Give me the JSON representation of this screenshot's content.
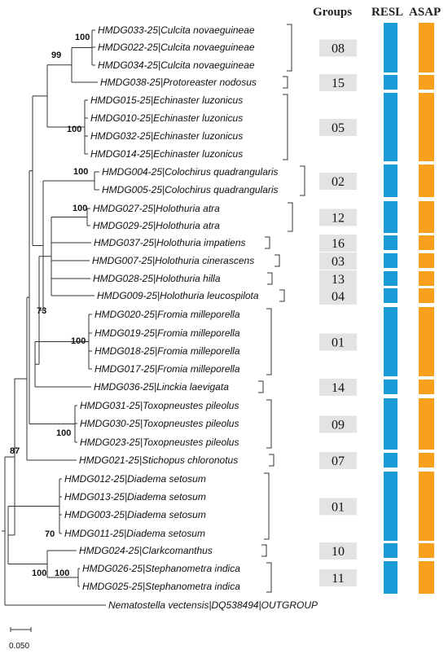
{
  "headers": {
    "groups": "Groups",
    "resl": "RESL",
    "asap": "ASAP"
  },
  "colors": {
    "resl": "#1a9bd8",
    "asap": "#f7a01c",
    "group_box": "#e3e3e3",
    "lines": "#333333"
  },
  "taxa": [
    "HMDG033-25|Culcita novaeguineae",
    "HMDG022-25|Culcita novaeguineae",
    "HMDG034-25|Culcita novaeguineae",
    "HMDG038-25|Protoreaster nodosus",
    "HMDG015-25|Echinaster luzonicus",
    "HMDG010-25|Echinaster luzonicus",
    "HMDG032-25|Echinaster luzonicus",
    "HMDG014-25|Echinaster luzonicus",
    "HMDG004-25|Colochirus quadrangularis",
    "HMDG005-25|Colochirus quadrangularis",
    "HMDG027-25|Holothuria atra",
    "HMDG029-25|Holothuria atra",
    "HMDG037-25|Holothuria impatiens",
    "HMDG007-25|Holothuria cinerascens",
    "HMDG028-25|Holothuria hilla",
    "HMDG009-25|Holothuria leucospilota",
    "HMDG020-25|Fromia milleporella",
    "HMDG019-25|Fromia milleporella",
    "HMDG018-25|Fromia milleporella",
    "HMDG017-25|Fromia milleporella",
    "HMDG036-25|Linckia laevigata",
    "HMDG031-25|Toxopneustes pileolus",
    "HMDG030-25|Toxopneustes pileolus",
    "HMDG023-25|Toxopneustes pileolus",
    "HMDG021-25|Stichopus chloronotus",
    "HMDG012-25|Diadema setosum",
    "HMDG013-25|Diadema setosum",
    "HMDG003-25|Diadema setosum",
    "HMDG011-25|Diadema setosum",
    "HMDG024-25|Clarkcomanthus",
    "HMDG026-25|Stephanometra indica",
    "HMDG025-25|Stephanometra indica",
    "Nematostella vectensis|DQ538494|OUTGROUP"
  ],
  "groups": [
    {
      "label": "08",
      "members": [
        0,
        1,
        2
      ]
    },
    {
      "label": "15",
      "members": [
        3
      ]
    },
    {
      "label": "05",
      "members": [
        4,
        5,
        6,
        7
      ]
    },
    {
      "label": "02",
      "members": [
        8,
        9
      ]
    },
    {
      "label": "12",
      "members": [
        10,
        11
      ]
    },
    {
      "label": "16",
      "members": [
        12
      ]
    },
    {
      "label": "03",
      "members": [
        13
      ]
    },
    {
      "label": "13",
      "members": [
        14
      ]
    },
    {
      "label": "04",
      "members": [
        15
      ]
    },
    {
      "label": "01",
      "members": [
        16,
        17,
        18,
        19
      ]
    },
    {
      "label": "14",
      "members": [
        20
      ]
    },
    {
      "label": "09",
      "members": [
        21,
        22,
        23
      ]
    },
    {
      "label": "07",
      "members": [
        24
      ]
    },
    {
      "label": "01",
      "members": [
        25,
        26,
        27,
        28
      ]
    },
    {
      "label": "10",
      "members": [
        29
      ]
    },
    {
      "label": "11",
      "members": [
        30,
        31
      ]
    }
  ],
  "bootstrap": [
    "100",
    "99",
    "100",
    "100",
    "100",
    "73",
    "100",
    "100",
    "87",
    "70",
    "100",
    "100"
  ],
  "scale_bar": {
    "label": "0.050"
  }
}
